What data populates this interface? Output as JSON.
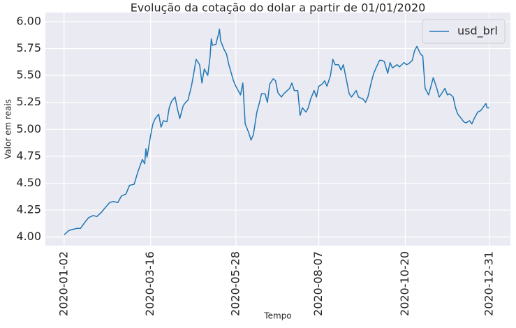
{
  "chart_data": {
    "type": "line",
    "title": "Evolução da cotação do dolar a partir de 01/01/2020",
    "x_label": "Tempo",
    "y_label": "Valor em reais",
    "x": [
      "2020-01-02",
      "2020-01-06",
      "2020-01-09",
      "2020-01-13",
      "2020-01-16",
      "2020-01-20",
      "2020-01-23",
      "2020-01-27",
      "2020-01-30",
      "2020-02-03",
      "2020-02-06",
      "2020-02-10",
      "2020-02-13",
      "2020-02-17",
      "2020-02-20",
      "2020-02-24",
      "2020-02-27",
      "2020-03-02",
      "2020-03-05",
      "2020-03-09",
      "2020-03-11",
      "2020-03-12",
      "2020-03-13",
      "2020-03-16",
      "2020-03-18",
      "2020-03-20",
      "2020-03-23",
      "2020-03-25",
      "2020-03-27",
      "2020-03-30",
      "2020-04-01",
      "2020-04-03",
      "2020-04-06",
      "2020-04-08",
      "2020-04-10",
      "2020-04-13",
      "2020-04-15",
      "2020-04-17",
      "2020-04-20",
      "2020-04-22",
      "2020-04-24",
      "2020-04-27",
      "2020-04-29",
      "2020-05-01",
      "2020-05-04",
      "2020-05-06",
      "2020-05-07",
      "2020-05-08",
      "2020-05-11",
      "2020-05-13",
      "2020-05-14",
      "2020-05-15",
      "2020-05-18",
      "2020-05-20",
      "2020-05-22",
      "2020-05-26",
      "2020-05-28",
      "2020-06-01",
      "2020-06-03",
      "2020-06-05",
      "2020-06-08",
      "2020-06-10",
      "2020-06-12",
      "2020-06-15",
      "2020-06-17",
      "2020-06-19",
      "2020-06-22",
      "2020-06-24",
      "2020-06-26",
      "2020-06-29",
      "2020-07-01",
      "2020-07-03",
      "2020-07-06",
      "2020-07-08",
      "2020-07-10",
      "2020-07-13",
      "2020-07-15",
      "2020-07-17",
      "2020-07-20",
      "2020-07-22",
      "2020-07-24",
      "2020-07-27",
      "2020-07-29",
      "2020-07-31",
      "2020-08-03",
      "2020-08-05",
      "2020-08-07",
      "2020-08-10",
      "2020-08-12",
      "2020-08-14",
      "2020-08-17",
      "2020-08-19",
      "2020-08-21",
      "2020-08-24",
      "2020-08-26",
      "2020-08-28",
      "2020-08-31",
      "2020-09-02",
      "2020-09-04",
      "2020-09-08",
      "2020-09-10",
      "2020-09-14",
      "2020-09-16",
      "2020-09-18",
      "2020-09-21",
      "2020-09-23",
      "2020-09-25",
      "2020-09-28",
      "2020-09-30",
      "2020-10-02",
      "2020-10-05",
      "2020-10-07",
      "2020-10-09",
      "2020-10-13",
      "2020-10-15",
      "2020-10-19",
      "2020-10-21",
      "2020-10-23",
      "2020-10-26",
      "2020-10-28",
      "2020-10-30",
      "2020-11-02",
      "2020-11-04",
      "2020-11-06",
      "2020-11-09",
      "2020-11-11",
      "2020-11-13",
      "2020-11-16",
      "2020-11-18",
      "2020-11-20",
      "2020-11-23",
      "2020-11-25",
      "2020-11-27",
      "2020-11-30",
      "2020-12-02",
      "2020-12-04",
      "2020-12-07",
      "2020-12-09",
      "2020-12-11",
      "2020-12-14",
      "2020-12-16",
      "2020-12-18",
      "2020-12-21",
      "2020-12-23",
      "2020-12-24",
      "2020-12-28",
      "2020-12-29",
      "2020-12-30",
      "2020-12-31"
    ],
    "series": [
      {
        "name": "usd_brl",
        "color": "#1f77b4",
        "values": [
          4.02,
          4.06,
          4.07,
          4.08,
          4.08,
          4.14,
          4.18,
          4.2,
          4.19,
          4.23,
          4.27,
          4.32,
          4.33,
          4.32,
          4.38,
          4.4,
          4.48,
          4.49,
          4.6,
          4.72,
          4.68,
          4.82,
          4.74,
          4.94,
          5.05,
          5.1,
          5.14,
          5.02,
          5.08,
          5.07,
          5.2,
          5.26,
          5.3,
          5.19,
          5.1,
          5.22,
          5.25,
          5.27,
          5.4,
          5.52,
          5.65,
          5.6,
          5.43,
          5.56,
          5.5,
          5.68,
          5.84,
          5.78,
          5.79,
          5.88,
          5.93,
          5.82,
          5.74,
          5.7,
          5.6,
          5.45,
          5.4,
          5.32,
          5.43,
          5.05,
          4.97,
          4.9,
          4.95,
          5.16,
          5.24,
          5.33,
          5.33,
          5.25,
          5.42,
          5.47,
          5.45,
          5.34,
          5.3,
          5.33,
          5.35,
          5.38,
          5.43,
          5.36,
          5.36,
          5.13,
          5.2,
          5.16,
          5.2,
          5.28,
          5.36,
          5.3,
          5.4,
          5.42,
          5.45,
          5.4,
          5.5,
          5.65,
          5.6,
          5.6,
          5.55,
          5.6,
          5.44,
          5.33,
          5.3,
          5.36,
          5.3,
          5.28,
          5.25,
          5.3,
          5.44,
          5.52,
          5.57,
          5.64,
          5.64,
          5.63,
          5.52,
          5.62,
          5.57,
          5.6,
          5.58,
          5.62,
          5.6,
          5.61,
          5.64,
          5.73,
          5.77,
          5.7,
          5.68,
          5.38,
          5.32,
          5.4,
          5.48,
          5.38,
          5.3,
          5.33,
          5.38,
          5.32,
          5.33,
          5.3,
          5.2,
          5.14,
          5.1,
          5.07,
          5.06,
          5.08,
          5.05,
          5.1,
          5.16,
          5.17,
          5.18,
          5.24,
          5.2,
          5.2,
          5.2
        ]
      }
    ],
    "xlim": [
      "2019-12-17",
      "2021-01-18"
    ],
    "xticks": [
      "2020-01-02",
      "2020-03-16",
      "2020-05-28",
      "2020-08-07",
      "2020-10-20",
      "2020-12-31"
    ],
    "ylim": [
      3.92,
      6.084
    ],
    "yticks": [
      {
        "value": 4,
        "label": "4.00"
      },
      {
        "value": 4.25,
        "label": "4.25"
      },
      {
        "value": 4.5,
        "label": "4.50"
      },
      {
        "value": 4.75,
        "label": "4.75"
      },
      {
        "value": 5,
        "label": "5.00"
      },
      {
        "value": 5.25,
        "label": "5.25"
      },
      {
        "value": 5.5,
        "label": "5.50"
      },
      {
        "value": 5.75,
        "label": "5.75"
      },
      {
        "value": 6,
        "label": "6.00"
      }
    ],
    "grid": true,
    "legend": "upper right"
  }
}
